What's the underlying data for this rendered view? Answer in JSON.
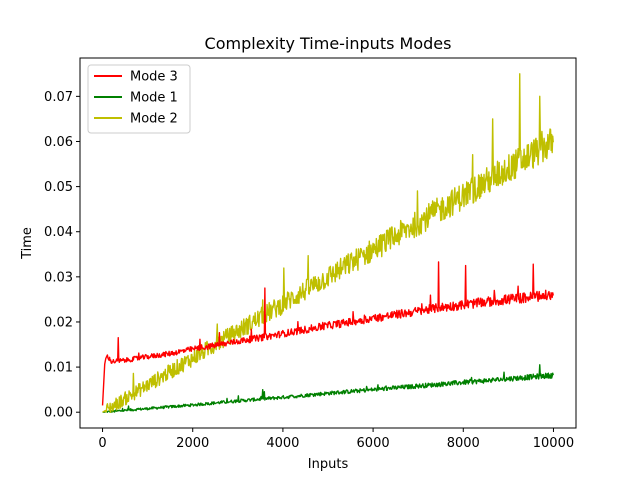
{
  "chart_data": {
    "type": "line",
    "title": "Complexity Time-inputs Modes",
    "xlabel": "Inputs",
    "ylabel": "Time",
    "xlim": [
      -500,
      10500
    ],
    "ylim": [
      -0.0035,
      0.0785
    ],
    "xticks": [
      0,
      2000,
      4000,
      6000,
      8000,
      10000
    ],
    "yticks": [
      0.0,
      0.01,
      0.02,
      0.03,
      0.04,
      0.05,
      0.06,
      0.07
    ],
    "xtick_labels": [
      "0",
      "2000",
      "4000",
      "6000",
      "8000",
      "10000"
    ],
    "ytick_labels": [
      "0.00",
      "0.01",
      "0.02",
      "0.03",
      "0.04",
      "0.05",
      "0.06",
      "0.07"
    ],
    "grid": false,
    "legend_position": "top-left",
    "series": [
      {
        "name": "Mode 3",
        "color": "#ff0000",
        "points": [
          [
            0,
            0.0015
          ],
          [
            50,
            0.011
          ],
          [
            100,
            0.0125
          ],
          [
            200,
            0.0112
          ],
          [
            500,
            0.0115
          ],
          [
            1000,
            0.0123
          ],
          [
            1500,
            0.013
          ],
          [
            2000,
            0.014
          ],
          [
            2500,
            0.0148
          ],
          [
            3000,
            0.0157
          ],
          [
            3500,
            0.0165
          ],
          [
            4000,
            0.0174
          ],
          [
            4500,
            0.0183
          ],
          [
            5000,
            0.0192
          ],
          [
            5500,
            0.02
          ],
          [
            6000,
            0.0208
          ],
          [
            6500,
            0.0216
          ],
          [
            7000,
            0.0224
          ],
          [
            7500,
            0.0232
          ],
          [
            8000,
            0.0238
          ],
          [
            8500,
            0.0244
          ],
          [
            9000,
            0.025
          ],
          [
            9500,
            0.0255
          ],
          [
            10000,
            0.026
          ]
        ],
        "noise": 0.0012,
        "spikes": [
          [
            350,
            0.0165
          ],
          [
            2550,
            0.02
          ],
          [
            3600,
            0.0275
          ],
          [
            7450,
            0.0333
          ],
          [
            8050,
            0.0325
          ],
          [
            9550,
            0.0328
          ]
        ]
      },
      {
        "name": "Mode 1",
        "color": "#008000",
        "points": [
          [
            0,
            0.0
          ],
          [
            1000,
            0.0008
          ],
          [
            2000,
            0.0016
          ],
          [
            3000,
            0.0025
          ],
          [
            4000,
            0.0033
          ],
          [
            5000,
            0.0042
          ],
          [
            6000,
            0.005
          ],
          [
            7000,
            0.0058
          ],
          [
            8000,
            0.0066
          ],
          [
            9000,
            0.0074
          ],
          [
            10000,
            0.0082
          ]
        ],
        "noise": 0.0006,
        "spikes": [
          [
            3550,
            0.005
          ],
          [
            9700,
            0.0105
          ]
        ]
      },
      {
        "name": "Mode 2",
        "color": "#bfbf00",
        "points": [
          [
            0,
            0.0
          ],
          [
            1000,
            0.006
          ],
          [
            2000,
            0.012
          ],
          [
            3000,
            0.018
          ],
          [
            4000,
            0.024
          ],
          [
            5000,
            0.03
          ],
          [
            6000,
            0.036
          ],
          [
            7000,
            0.042
          ],
          [
            8000,
            0.048
          ],
          [
            9000,
            0.054
          ],
          [
            10000,
            0.06
          ]
        ],
        "noise": 0.0035,
        "spikes": [
          [
            2550,
            0.029
          ],
          [
            6150,
            0.054
          ],
          [
            8650,
            0.065
          ],
          [
            9250,
            0.075
          ],
          [
            9700,
            0.07
          ]
        ]
      }
    ]
  }
}
